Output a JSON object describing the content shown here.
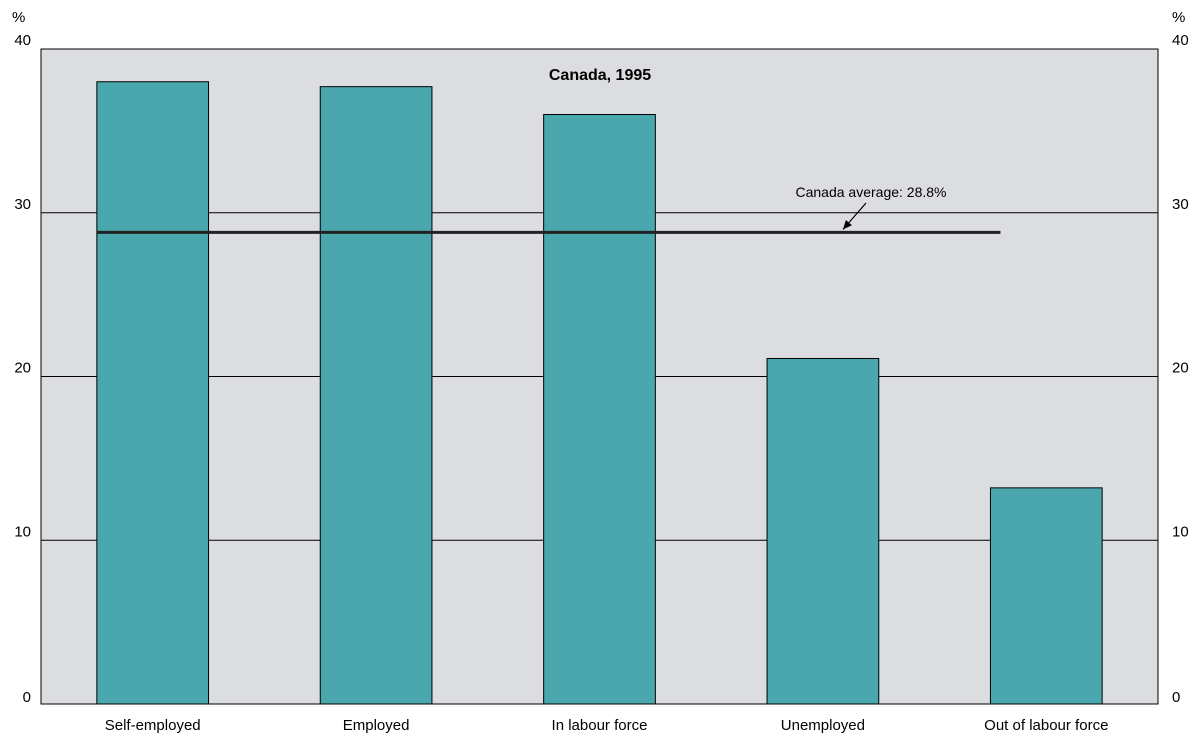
{
  "chart_data": {
    "type": "bar",
    "title": "Canada, 1995",
    "categories": [
      "Self-employed",
      "Employed",
      "In labour force",
      "Unemployed",
      "Out of labour force"
    ],
    "values": [
      38.0,
      37.7,
      36.0,
      21.1,
      13.2
    ],
    "ylabel_left": "%",
    "ylabel_right": "%",
    "ylim": [
      0,
      40
    ],
    "yticks": [
      0,
      10,
      20,
      30,
      40
    ],
    "grid": true,
    "reference_line": {
      "value": 28.8,
      "label": "Canada average: 28.8%"
    },
    "colors": {
      "bar": "#4aa7ad",
      "plot_background": "#dcdde0",
      "reference_line": "#222222"
    }
  }
}
